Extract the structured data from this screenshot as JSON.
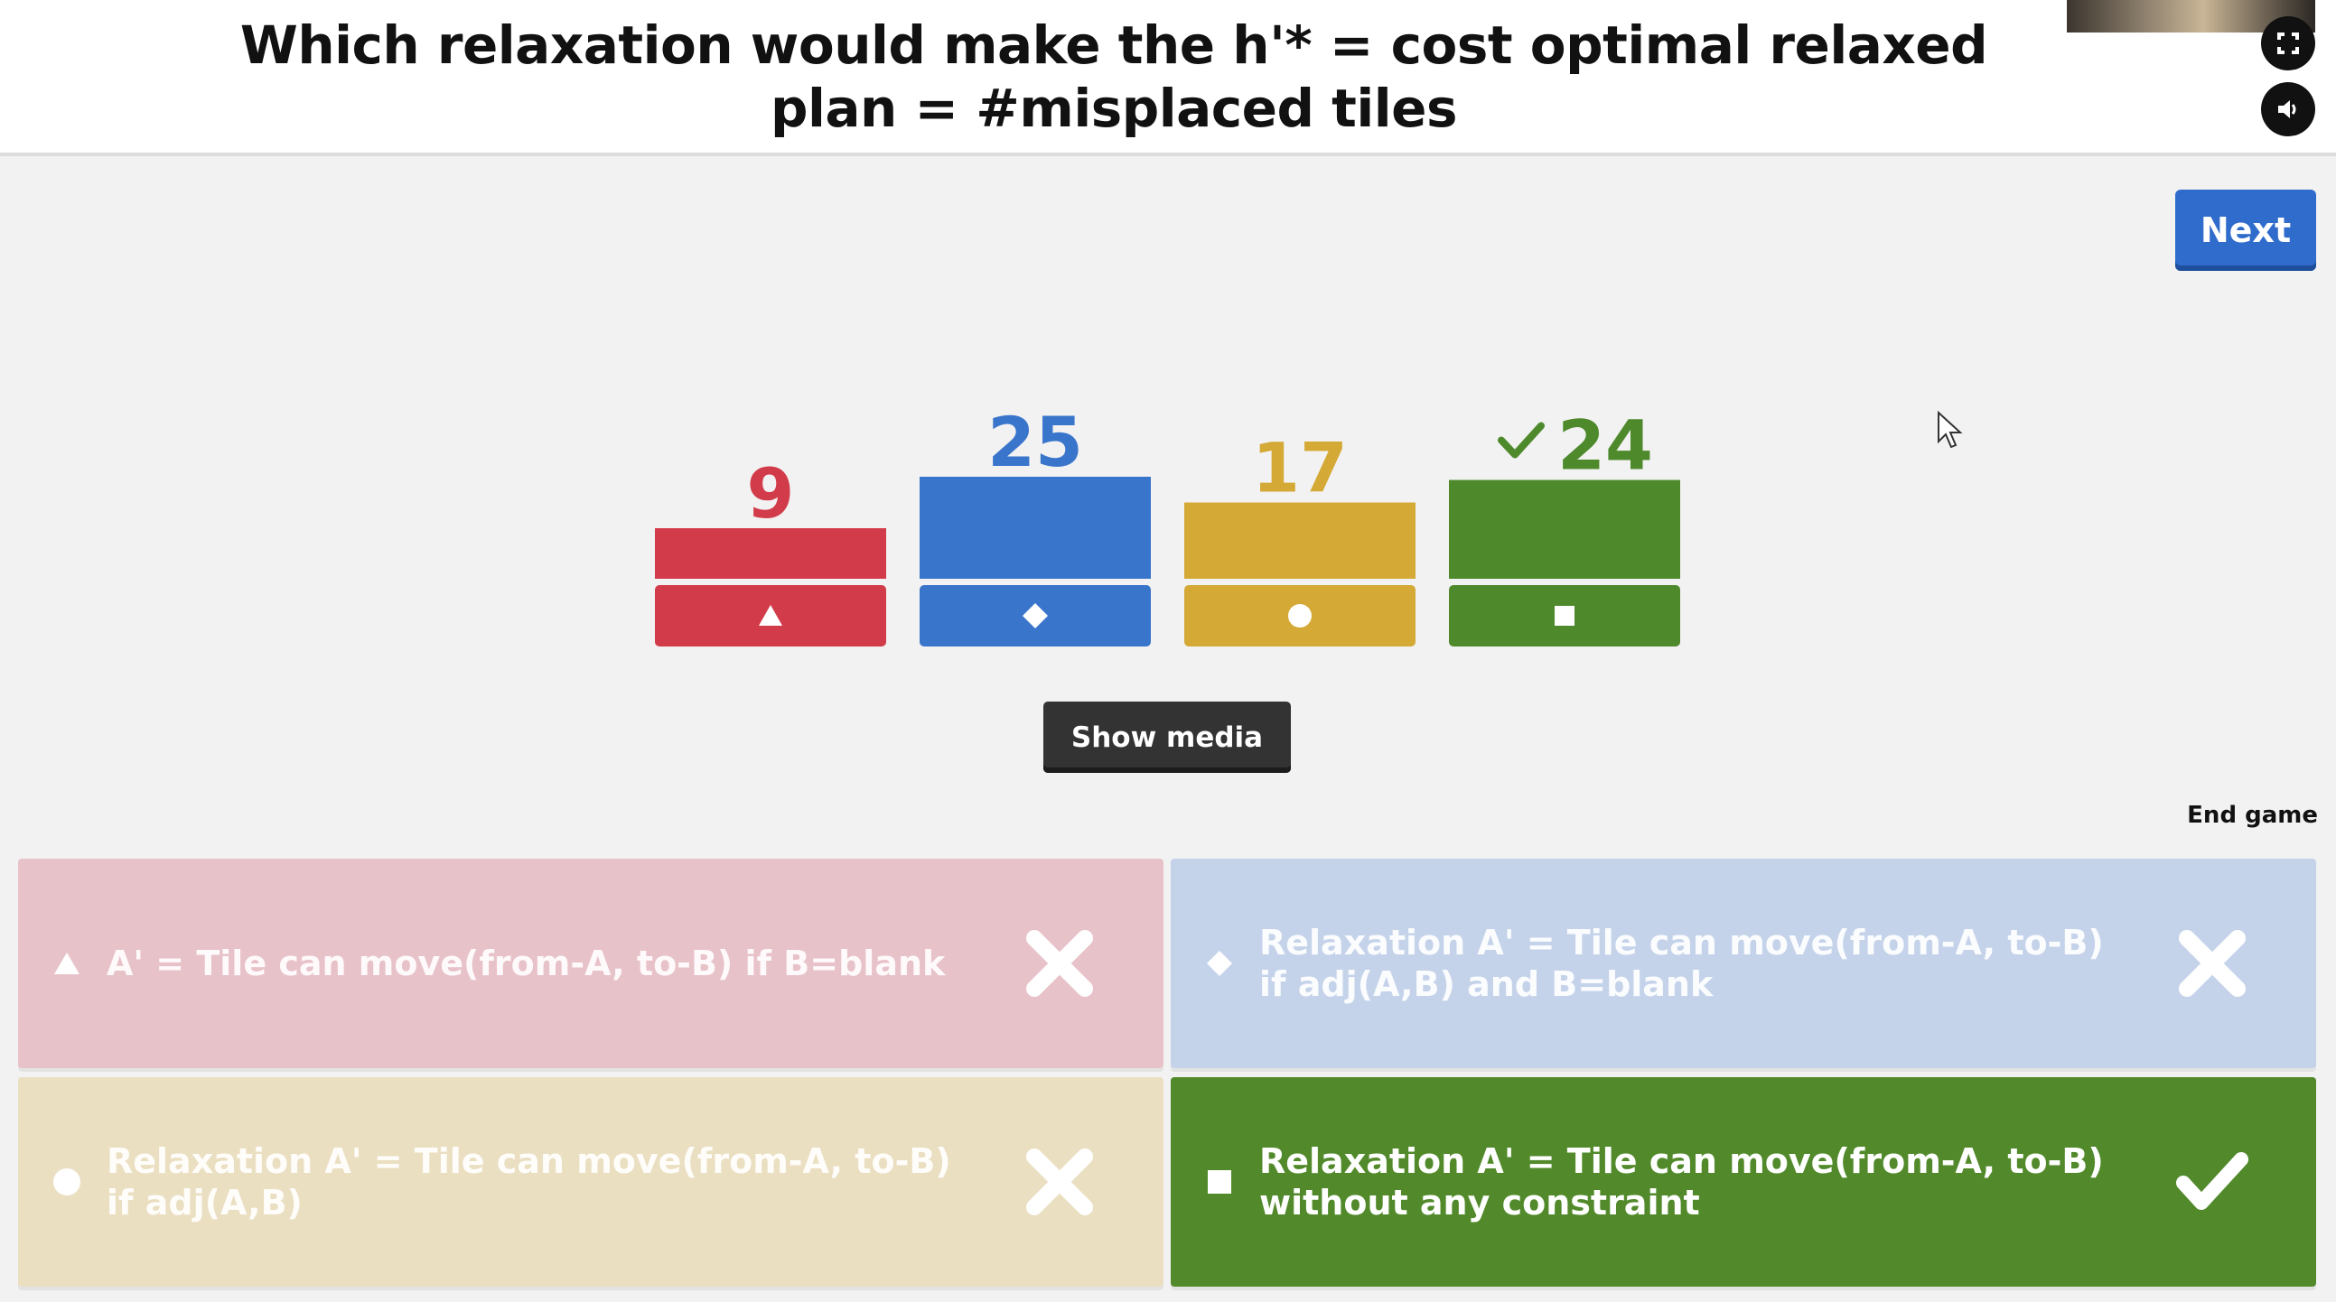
{
  "header": {
    "question": "Which relaxation would make the h'* = cost optimal relaxed plan = #misplaced tiles",
    "fullscreen_icon": "fullscreen-icon",
    "sound_icon": "speaker-icon"
  },
  "controls": {
    "next_label": "Next",
    "show_media_label": "Show media",
    "end_game_label": "End game"
  },
  "colors": {
    "red": "#d23c4a",
    "blue": "#3a75cc",
    "yellow": "#d4a936",
    "green": "#4e8a2c"
  },
  "chart_data": {
    "type": "bar",
    "categories": [
      "triangle",
      "diamond",
      "circle",
      "square"
    ],
    "values": [
      9,
      25,
      17,
      24
    ],
    "correct": [
      false,
      false,
      false,
      true
    ],
    "ylim": [
      0,
      25
    ]
  },
  "answers": [
    {
      "shape": "triangle-icon",
      "text": "A' = Tile can move(from-A, to-B) if B=blank",
      "result": "incorrect"
    },
    {
      "shape": "diamond-icon",
      "text": "Relaxation A' = Tile can move(from-A, to-B) if adj(A,B) and B=blank",
      "result": "incorrect"
    },
    {
      "shape": "circle-icon",
      "text": "Relaxation A' = Tile can move(from-A, to-B) if adj(A,B)",
      "result": "incorrect"
    },
    {
      "shape": "square-icon",
      "text": "Relaxation A' = Tile can move(from-A, to-B) without any constraint",
      "result": "correct"
    }
  ]
}
